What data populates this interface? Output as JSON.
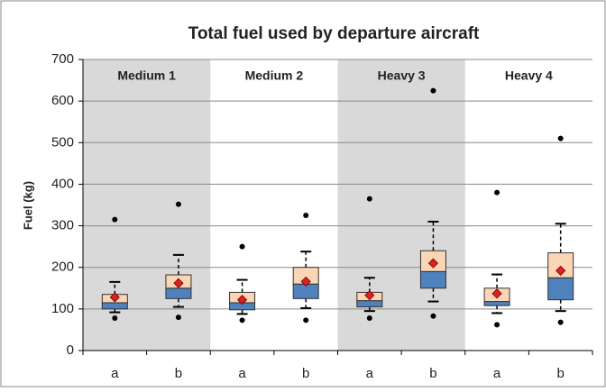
{
  "chart_data": {
    "type": "box",
    "title": "Total fuel used by departure aircraft",
    "ylabel": "Fuel (kg)",
    "groups": [
      "Medium 1",
      "Medium 2",
      "Heavy 3",
      "Heavy 4"
    ],
    "categories": [
      "a",
      "b",
      "a",
      "b",
      "a",
      "b",
      "a",
      "b"
    ],
    "boxes": [
      {
        "whisker_low": 92,
        "q1": 100,
        "median": 115,
        "q3": 135,
        "whisker_high": 165,
        "mean": 128,
        "outliers": [
          78,
          315
        ]
      },
      {
        "whisker_low": 105,
        "q1": 125,
        "median": 150,
        "q3": 182,
        "whisker_high": 230,
        "mean": 162,
        "outliers": [
          80,
          352
        ]
      },
      {
        "whisker_low": 88,
        "q1": 98,
        "median": 115,
        "q3": 140,
        "whisker_high": 170,
        "mean": 122,
        "outliers": [
          73,
          250
        ]
      },
      {
        "whisker_low": 102,
        "q1": 125,
        "median": 160,
        "q3": 200,
        "whisker_high": 238,
        "mean": 166,
        "outliers": [
          73,
          325
        ]
      },
      {
        "whisker_low": 95,
        "q1": 105,
        "median": 120,
        "q3": 140,
        "whisker_high": 175,
        "mean": 133,
        "outliers": [
          78,
          365
        ]
      },
      {
        "whisker_low": 118,
        "q1": 150,
        "median": 190,
        "q3": 240,
        "whisker_high": 310,
        "mean": 210,
        "outliers": [
          83,
          625
        ]
      },
      {
        "whisker_low": 90,
        "q1": 108,
        "median": 118,
        "q3": 150,
        "whisker_high": 183,
        "mean": 137,
        "outliers": [
          62,
          380
        ]
      },
      {
        "whisker_low": 95,
        "q1": 122,
        "median": 175,
        "q3": 235,
        "whisker_high": 305,
        "mean": 192,
        "outliers": [
          68,
          510
        ]
      }
    ],
    "lower_color": "#4f81bd",
    "upper_color": "#fcd5b4",
    "mean_color": "#e02020",
    "group_shade": "#d9d9d9",
    "ylim": [
      0,
      700
    ],
    "yticks": [
      0,
      100,
      200,
      300,
      400,
      500,
      600,
      700
    ],
    "grid": true
  }
}
